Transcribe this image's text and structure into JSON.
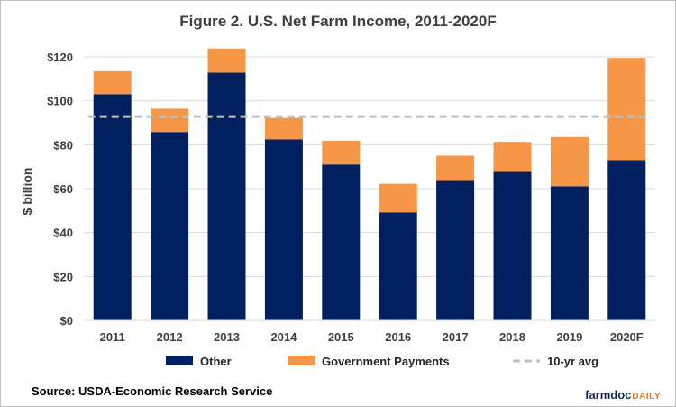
{
  "chart_data": {
    "type": "bar",
    "stacked": true,
    "title": "Figure 2. U.S. Net Farm Income, 2011-2020F",
    "xlabel": "",
    "ylabel": "$ billion",
    "ylim": [
      0,
      120
    ],
    "yticks": [
      0,
      20,
      40,
      60,
      80,
      100,
      120
    ],
    "ytick_labels": [
      "$0",
      "$20",
      "$40",
      "$60",
      "$80",
      "$100",
      "$120"
    ],
    "grid": "horizontal",
    "legend_position": "bottom",
    "categories": [
      "2011",
      "2012",
      "2013",
      "2014",
      "2015",
      "2016",
      "2017",
      "2018",
      "2019",
      "2020F"
    ],
    "series": [
      {
        "name": "Other",
        "color": "#002060",
        "values": [
          103,
          85.8,
          112.8,
          82.4,
          71,
          49.2,
          63.5,
          67.6,
          61.1,
          73
        ]
      },
      {
        "name": "Government Payments",
        "color": "#f79646",
        "values": [
          10.5,
          10.6,
          11,
          9.8,
          10.8,
          13,
          11.5,
          13.7,
          22.4,
          46.5
        ]
      }
    ],
    "reference_line": {
      "name": "10-yr avg",
      "value": 92.8,
      "color": "#bfbfbf",
      "style": "dashed"
    }
  },
  "footer": {
    "source": "Source: USDA-Economic  Research Service",
    "brand_main": "farmdoc",
    "brand_sub": "DAILY"
  }
}
